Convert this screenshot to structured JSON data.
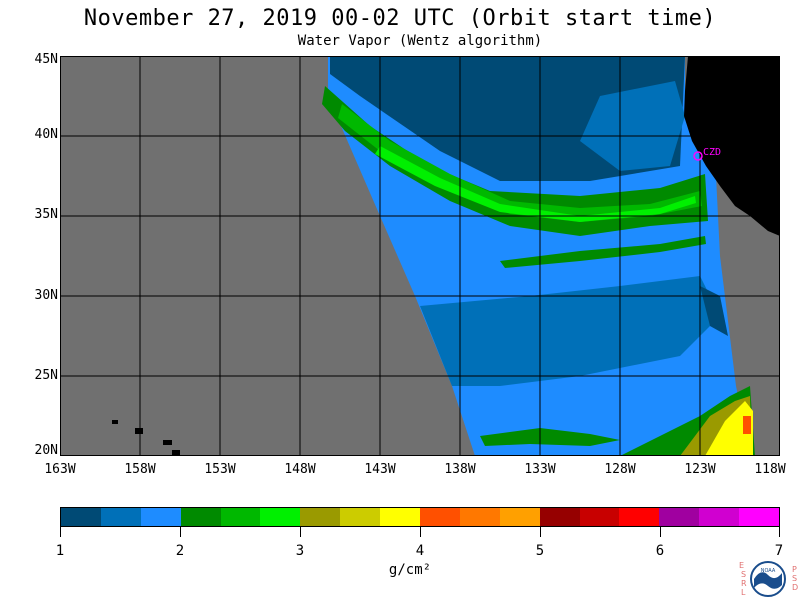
{
  "header": {
    "title": "November 27, 2019  00-02 UTC  (Orbit start time)",
    "subtitle": "Water Vapor (Wentz algorithm)"
  },
  "map": {
    "lat_labels": [
      "45N",
      "40N",
      "35N",
      "30N",
      "25N",
      "20N"
    ],
    "lon_labels": [
      "163W",
      "158W",
      "153W",
      "148W",
      "143W",
      "138W",
      "133W",
      "128W",
      "123W",
      "118W"
    ],
    "station_label": "CZD",
    "colors": {
      "no_data": "#707070",
      "land": "#000000",
      "station": "#ff00ff"
    }
  },
  "colorbar": {
    "labels": [
      "1",
      "2",
      "3",
      "4",
      "5",
      "6",
      "7"
    ],
    "units": "g/cm²",
    "colors": [
      "#004a75",
      "#0070b8",
      "#1e8cff",
      "#008a00",
      "#00b800",
      "#00f000",
      "#9a9a00",
      "#cccc00",
      "#ffff00",
      "#ff5000",
      "#ff7800",
      "#ffa000",
      "#960000",
      "#c80000",
      "#ff0000",
      "#a000a0",
      "#d000d0",
      "#ff00ff"
    ]
  },
  "logo": {
    "left_letters": [
      "E",
      "S",
      "R",
      "L"
    ],
    "right_letters": [
      "P",
      "S",
      "D"
    ],
    "center_text": "NOAA"
  }
}
